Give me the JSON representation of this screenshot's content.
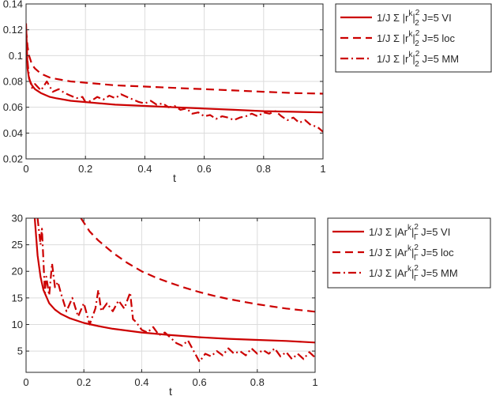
{
  "colors": {
    "series": "#cc0000",
    "axis": "#262626",
    "grid": "#dcdcdc",
    "legend_border": "#262626"
  },
  "chart_data": [
    {
      "type": "line",
      "title": "",
      "xlabel": "t",
      "ylabel": "",
      "xlim": [
        0,
        1
      ],
      "ylim": [
        0.02,
        0.14
      ],
      "xticks": [
        0,
        0.2,
        0.4,
        0.6,
        0.8,
        1
      ],
      "xtick_labels": [
        "0",
        "0.2",
        "0.4",
        "0.6",
        "0.8",
        "1"
      ],
      "yticks": [
        0.02,
        0.04,
        0.06,
        0.08,
        0.1,
        0.12,
        0.14
      ],
      "ytick_labels": [
        "0.02",
        "0.04",
        "0.06",
        "0.08",
        "0.1",
        "0.12",
        "0.14"
      ],
      "grid": true,
      "legend_position": "outside-top-right",
      "series": [
        {
          "name": "1/J Σ |r^k|_2^2 J=5 VI",
          "label_parts": {
            "prefix": "1/J",
            "sigma": "Σ",
            "body": "|r",
            "sup": "k",
            "close": "|",
            "sub": "2",
            "sub_sup": "2",
            "suffix": "J=5 VI"
          },
          "style": "solid",
          "x": [
            0,
            0.005,
            0.01,
            0.02,
            0.03,
            0.05,
            0.08,
            0.1,
            0.15,
            0.2,
            0.3,
            0.4,
            0.5,
            0.6,
            0.7,
            0.8,
            0.9,
            1.0
          ],
          "y": [
            0.125,
            0.09,
            0.082,
            0.077,
            0.074,
            0.071,
            0.068,
            0.067,
            0.065,
            0.064,
            0.062,
            0.061,
            0.06,
            0.059,
            0.058,
            0.057,
            0.0565,
            0.056
          ]
        },
        {
          "name": "1/J Σ |r^k|_2^2 J=5 loc",
          "label_parts": {
            "prefix": "1/J",
            "sigma": "Σ",
            "body": "|r",
            "sup": "k",
            "close": "|",
            "sub": "2",
            "sub_sup": "2",
            "suffix": "J=5 loc"
          },
          "style": "dashed",
          "x": [
            0,
            0.005,
            0.01,
            0.02,
            0.03,
            0.05,
            0.08,
            0.1,
            0.15,
            0.2,
            0.3,
            0.4,
            0.5,
            0.6,
            0.7,
            0.8,
            0.9,
            1.0
          ],
          "y": [
            0.12,
            0.107,
            0.1,
            0.093,
            0.09,
            0.086,
            0.083,
            0.082,
            0.08,
            0.079,
            0.077,
            0.076,
            0.075,
            0.074,
            0.073,
            0.072,
            0.071,
            0.0705
          ]
        },
        {
          "name": "1/J Σ |r^k|_2^2 J=5 MM",
          "label_parts": {
            "prefix": "1/J",
            "sigma": "Σ",
            "body": "|r",
            "sup": "k",
            "close": "|",
            "sub": "2",
            "sub_sup": "2",
            "suffix": "J=5 MM"
          },
          "style": "dashdot",
          "x": [
            0,
            0.01,
            0.02,
            0.03,
            0.05,
            0.07,
            0.09,
            0.11,
            0.13,
            0.15,
            0.17,
            0.19,
            0.2,
            0.22,
            0.24,
            0.26,
            0.28,
            0.3,
            0.32,
            0.34,
            0.36,
            0.38,
            0.4,
            0.42,
            0.44,
            0.46,
            0.48,
            0.5,
            0.52,
            0.54,
            0.56,
            0.58,
            0.6,
            0.62,
            0.64,
            0.66,
            0.68,
            0.7,
            0.72,
            0.74,
            0.76,
            0.78,
            0.8,
            0.82,
            0.84,
            0.86,
            0.88,
            0.9,
            0.92,
            0.94,
            0.96,
            0.98,
            1.0
          ],
          "y": [
            0.108,
            0.083,
            0.075,
            0.078,
            0.073,
            0.08,
            0.072,
            0.074,
            0.071,
            0.069,
            0.067,
            0.068,
            0.064,
            0.065,
            0.068,
            0.066,
            0.069,
            0.067,
            0.07,
            0.068,
            0.066,
            0.064,
            0.063,
            0.065,
            0.062,
            0.063,
            0.06,
            0.061,
            0.058,
            0.059,
            0.055,
            0.056,
            0.053,
            0.054,
            0.051,
            0.053,
            0.052,
            0.05,
            0.052,
            0.053,
            0.055,
            0.053,
            0.056,
            0.055,
            0.057,
            0.053,
            0.05,
            0.052,
            0.048,
            0.05,
            0.046,
            0.045,
            0.041
          ]
        }
      ]
    },
    {
      "type": "line",
      "title": "",
      "xlabel": "t",
      "ylabel": "",
      "xlim": [
        0,
        1
      ],
      "ylim": [
        1,
        30
      ],
      "xticks": [
        0,
        0.2,
        0.4,
        0.6,
        0.8,
        1
      ],
      "xtick_labels": [
        "0",
        "0.2",
        "0.4",
        "0.6",
        "0.8",
        "1"
      ],
      "yticks": [
        5,
        10,
        15,
        20,
        25,
        30
      ],
      "ytick_labels": [
        "5",
        "10",
        "15",
        "20",
        "25",
        "30"
      ],
      "grid": true,
      "legend_position": "outside-top-right",
      "series": [
        {
          "name": "1/J Σ |Ar^k|_Γ^2 J=5 VI",
          "label_parts": {
            "prefix": "1/J",
            "sigma": "Σ",
            "body": "|Ar",
            "sup": "k",
            "close": "|",
            "sub": "Γ",
            "sub_sup": "2",
            "suffix": "J=5 VI"
          },
          "style": "solid",
          "x": [
            0.03,
            0.04,
            0.05,
            0.06,
            0.08,
            0.1,
            0.12,
            0.15,
            0.2,
            0.25,
            0.3,
            0.4,
            0.5,
            0.6,
            0.7,
            0.8,
            0.9,
            1.0
          ],
          "y": [
            30,
            23,
            19,
            16.5,
            14,
            12.8,
            12,
            11.2,
            10.3,
            9.7,
            9.2,
            8.5,
            8,
            7.6,
            7.3,
            7.1,
            6.9,
            6.6
          ]
        },
        {
          "name": "1/J Σ |Ar^k|_Γ^2 J=5 loc",
          "label_parts": {
            "prefix": "1/J",
            "sigma": "Σ",
            "body": "|Ar",
            "sup": "k",
            "close": "|",
            "sub": "Γ",
            "sub_sup": "2",
            "suffix": "J=5 loc"
          },
          "style": "dashed",
          "x": [
            0.19,
            0.22,
            0.25,
            0.3,
            0.35,
            0.4,
            0.45,
            0.5,
            0.55,
            0.6,
            0.65,
            0.7,
            0.75,
            0.8,
            0.85,
            0.9,
            0.95,
            1.0
          ],
          "y": [
            30,
            27.5,
            25.8,
            23.5,
            21.6,
            20,
            18.8,
            17.8,
            16.9,
            16.1,
            15.4,
            14.8,
            14.3,
            13.8,
            13.4,
            13.0,
            12.7,
            12.4
          ]
        },
        {
          "name": "1/J Σ |Ar^k|_Γ^2 J=5 MM",
          "label_parts": {
            "prefix": "1/J",
            "sigma": "Σ",
            "body": "|Ar",
            "sup": "k",
            "close": "|",
            "sub": "Γ",
            "sub_sup": "2",
            "suffix": "J=5 MM"
          },
          "style": "dashdot",
          "x": [
            0.04,
            0.05,
            0.055,
            0.06,
            0.065,
            0.07,
            0.08,
            0.09,
            0.1,
            0.11,
            0.12,
            0.14,
            0.16,
            0.18,
            0.2,
            0.22,
            0.24,
            0.25,
            0.26,
            0.28,
            0.3,
            0.32,
            0.34,
            0.36,
            0.37,
            0.38,
            0.4,
            0.42,
            0.44,
            0.46,
            0.48,
            0.5,
            0.52,
            0.54,
            0.56,
            0.58,
            0.6,
            0.62,
            0.64,
            0.66,
            0.68,
            0.7,
            0.72,
            0.74,
            0.76,
            0.78,
            0.8,
            0.82,
            0.84,
            0.86,
            0.88,
            0.9,
            0.92,
            0.94,
            0.96,
            0.98,
            1.0
          ],
          "y": [
            30,
            25,
            28,
            22,
            16,
            19,
            15.5,
            21.5,
            17,
            18,
            16,
            12.5,
            15,
            11.5,
            14,
            10,
            13,
            16.5,
            12.5,
            14,
            12.5,
            14.5,
            13,
            16,
            11,
            10.5,
            9,
            8.5,
            9.5,
            8,
            8.5,
            7.5,
            6.5,
            6,
            7,
            5,
            3,
            4.5,
            4,
            5,
            4.2,
            5.5,
            4.5,
            5,
            4.2,
            5.5,
            4.5,
            5.2,
            4.5,
            5.5,
            4,
            4.8,
            3.5,
            4.5,
            3.5,
            4.8,
            3.8
          ]
        }
      ]
    }
  ]
}
